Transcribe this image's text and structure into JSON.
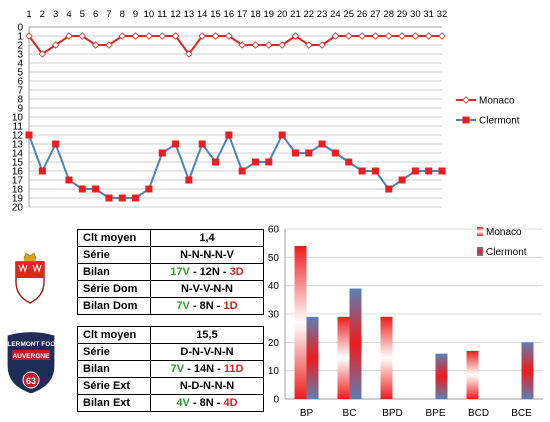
{
  "chart_data": [
    {
      "type": "line",
      "x": [
        1,
        2,
        3,
        4,
        5,
        6,
        7,
        8,
        9,
        10,
        11,
        12,
        13,
        14,
        15,
        16,
        17,
        18,
        19,
        20,
        21,
        22,
        23,
        24,
        25,
        26,
        27,
        28,
        29,
        30,
        31,
        32
      ],
      "ylim": [
        20,
        0
      ],
      "y_inverted": true,
      "legend_position": "right",
      "grid": true,
      "series": [
        {
          "name": "Monaco",
          "color": "#e52421",
          "values": [
            1,
            3,
            2,
            1,
            1,
            2,
            2,
            1,
            1,
            1,
            1,
            1,
            3,
            1,
            1,
            1,
            2,
            2,
            2,
            2,
            1,
            2,
            2,
            1,
            1,
            1,
            1,
            1,
            1,
            1,
            1,
            1
          ]
        },
        {
          "name": "Clermont",
          "color": "#4f81bd",
          "marker_color": "#ee1c1c",
          "values": [
            12,
            16,
            13,
            17,
            18,
            18,
            19,
            19,
            19,
            18,
            14,
            13,
            17,
            13,
            15,
            12,
            16,
            15,
            15,
            12,
            14,
            14,
            13,
            14,
            15,
            16,
            16,
            18,
            17,
            16,
            16,
            16
          ]
        }
      ]
    },
    {
      "type": "bar",
      "categories": [
        "BP",
        "BC",
        "BPD",
        "BPE",
        "BCD",
        "BCE"
      ],
      "ylim": [
        0,
        60
      ],
      "yticks": [
        0,
        10,
        20,
        30,
        40,
        50,
        60
      ],
      "legend_position": "top-right",
      "grid": true,
      "series": [
        {
          "name": "Monaco",
          "color": "#ee1c1c",
          "values": [
            54,
            29,
            29,
            null,
            17,
            null
          ]
        },
        {
          "name": "Clermont",
          "color": "#5b7fb5",
          "values": [
            29,
            39,
            null,
            16,
            null,
            20
          ]
        }
      ]
    }
  ],
  "monaco": {
    "rows": [
      {
        "label": "Clt moyen",
        "value": "1,4"
      },
      {
        "label": "Série",
        "value": "N-N-N-N-V"
      },
      {
        "label": "Bilan",
        "parts": [
          {
            "t": "17V",
            "c": "g"
          },
          {
            "t": " - 12N - ",
            "c": "k"
          },
          {
            "t": "3D",
            "c": "r"
          }
        ]
      },
      {
        "label": "Série Dom",
        "value": "N-V-V-N-N"
      },
      {
        "label": "Bilan Dom",
        "parts": [
          {
            "t": "7V",
            "c": "g"
          },
          {
            "t": " - 8N - ",
            "c": "k"
          },
          {
            "t": "1D",
            "c": "r"
          }
        ]
      }
    ]
  },
  "clermont": {
    "logo_text": "CLERMONT FOOT AUVERGNE",
    "logo_number": "63",
    "rows": [
      {
        "label": "Clt moyen",
        "value": "15,5"
      },
      {
        "label": "Série",
        "value": "D-N-V-N-N"
      },
      {
        "label": "Bilan",
        "parts": [
          {
            "t": "7V",
            "c": "g"
          },
          {
            "t": " - 14N - ",
            "c": "k"
          },
          {
            "t": "11D",
            "c": "r"
          }
        ]
      },
      {
        "label": "Série Ext",
        "value": "N-D-N-N-N"
      },
      {
        "label": "Bilan Ext",
        "parts": [
          {
            "t": "4V",
            "c": "g"
          },
          {
            "t": " - 8N - ",
            "c": "k"
          },
          {
            "t": "4D",
            "c": "r"
          }
        ]
      }
    ]
  }
}
